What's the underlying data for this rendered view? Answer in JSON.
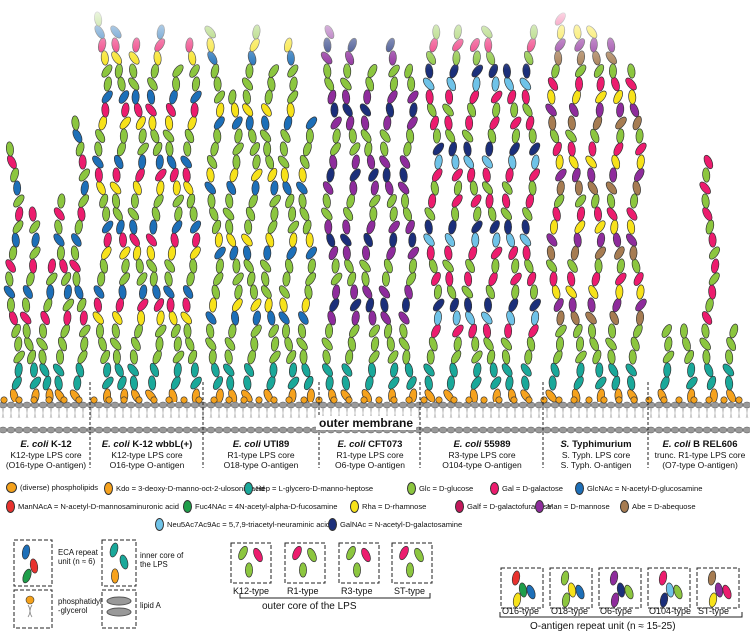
{
  "membrane": {
    "title": "outer membrane"
  },
  "strains": [
    {
      "name_italic": "E. coli",
      "name_rest": " K-12",
      "line2": "K12-type LPS core",
      "line3": "(O16-type O-antigen)"
    },
    {
      "name_italic": "E. coli",
      "name_rest": " K-12 wbbL(+)",
      "line2": "K12-type LPS core",
      "line3": "O16-type O-antigen"
    },
    {
      "name_italic": "E. coli",
      "name_rest": " UTI89",
      "line2": "R1-type LPS core",
      "line3": "O18-type O-antigen"
    },
    {
      "name_italic": "E. coli",
      "name_rest": " CFT073",
      "line2": "R1-type LPS core",
      "line3": "O6-type O-antigen"
    },
    {
      "name_italic": "E. coli",
      "name_rest": " 55989",
      "line2": "R3-type LPS core",
      "line3": "O104-type O-antigen"
    },
    {
      "name_italic": "S.",
      "name_rest": " Typhimurium",
      "line2": "S. Typh. LPS core",
      "line3": "S. Typh. O-antigen"
    },
    {
      "name_italic": "E. coli",
      "name_rest": " B REL606",
      "line2": "trunc. R1-type LPS core",
      "line3": "(O7-type O-antigen)"
    }
  ],
  "legend": {
    "items": [
      {
        "text": "(diverse) phospholipids",
        "color": "#f4a11b"
      },
      {
        "text": "Kdo = 3-deoxy-D-manno-oct-2-ulosonic acid",
        "color": "#f6a21d"
      },
      {
        "text": "Hep = L-glycero-D-manno-heptose",
        "color": "#1aa89a"
      },
      {
        "text": "Glc = D-glucose",
        "color": "#8cc63f"
      },
      {
        "text": "Gal = D-galactose",
        "color": "#ec1c6e"
      },
      {
        "text": "GlcNAc = N-acetyl-D-glucosamine",
        "color": "#1d6fb8"
      },
      {
        "text": "ManNAcA = N-acetyl-D-mannosaminuronic acid",
        "color": "#e8322e"
      },
      {
        "text": "Fuc4NAc = 4N-acetyl-alpha-D-fucosamine",
        "color": "#1f9e4a"
      },
      {
        "text": "Rha = D-rhamnose",
        "color": "#f7e21a"
      },
      {
        "text": "Galf = D-galactofuranose",
        "color": "#c2185b"
      },
      {
        "text": "Man = D-mannose",
        "color": "#8e2c9c"
      },
      {
        "text": "Abe = D-abequose",
        "color": "#a67c52"
      },
      {
        "text": "Neu5Ac7Ac9Ac = 5,7,9-triacetyl-neuraminic acid",
        "color": "#6fc3e8"
      },
      {
        "text": "GalNAc = N-acetyl-D-galactosamine",
        "color": "#1b2f7a"
      }
    ]
  },
  "key": {
    "eca": "ECA repeat unit (n ≈ 6)",
    "inner_core": "inner core of the LPS",
    "phospho": "phosphatidyl -glycerol",
    "lipidA": "lipid A"
  },
  "outer_core": {
    "types": [
      "K12-type",
      "R1-type",
      "R3-type",
      "ST-type"
    ],
    "title": "outer core of the LPS"
  },
  "oantigen": {
    "types": [
      "O16-type",
      "O18-type",
      "O6-type",
      "O104-type",
      "ST-type"
    ],
    "title": "O-antigen repeat unit (n ≈ 15-25)"
  }
}
